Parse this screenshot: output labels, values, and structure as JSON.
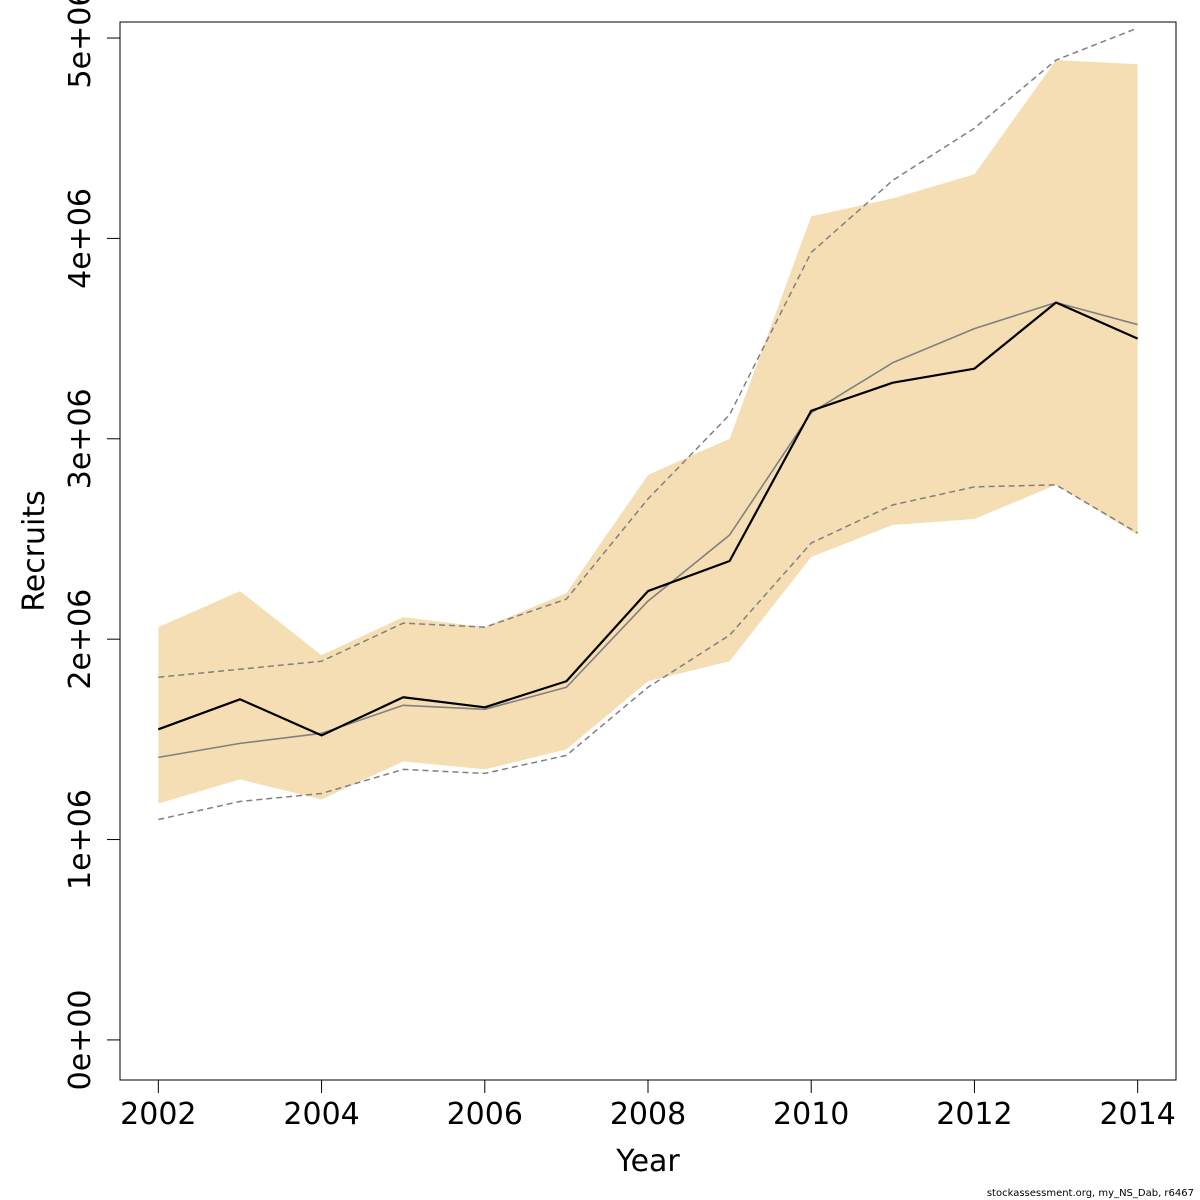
{
  "chart_data": {
    "type": "line",
    "xlabel": "Year",
    "ylabel": "Recruits",
    "xlim": [
      2001.53,
      2014.47
    ],
    "ylim": [
      -200000,
      5080000
    ],
    "x_ticks": [
      2002,
      2004,
      2006,
      2008,
      2010,
      2012,
      2014
    ],
    "x_tick_labels": [
      "2002",
      "2004",
      "2006",
      "2008",
      "2010",
      "2012",
      "2014"
    ],
    "y_ticks": [
      0,
      1000000,
      2000000,
      3000000,
      4000000,
      5000000
    ],
    "y_tick_labels": [
      "0e+00",
      "1e+06",
      "2e+06",
      "3e+06",
      "4e+06",
      "5e+06"
    ],
    "grid": false,
    "x": [
      2002,
      2003,
      2004,
      2005,
      2006,
      2007,
      2008,
      2009,
      2010,
      2011,
      2012,
      2013,
      2014
    ],
    "band": {
      "lower": [
        1180000,
        1300000,
        1200000,
        1390000,
        1350000,
        1450000,
        1790000,
        1890000,
        2410000,
        2570000,
        2600000,
        2770000,
        2520000
      ],
      "upper": [
        2060000,
        2240000,
        1920000,
        2110000,
        2060000,
        2230000,
        2820000,
        3000000,
        4110000,
        4200000,
        4320000,
        4890000,
        4870000
      ]
    },
    "series": [
      {
        "values": [
          1550000,
          1700000,
          1520000,
          1710000,
          1660000,
          1790000,
          2240000,
          2390000,
          3140000,
          3280000,
          3350000,
          3680000,
          3500000
        ]
      },
      {
        "values": [
          1410000,
          1480000,
          1530000,
          1670000,
          1650000,
          1760000,
          2190000,
          2520000,
          3130000,
          3380000,
          3550000,
          3680000,
          3570000
        ]
      },
      {
        "values": [
          1810000,
          1850000,
          1890000,
          2080000,
          2060000,
          2200000,
          2700000,
          3120000,
          3930000,
          4290000,
          4550000,
          4890000,
          5050000
        ]
      },
      {
        "values": [
          1100000,
          1190000,
          1230000,
          1350000,
          1330000,
          1420000,
          1760000,
          2020000,
          2480000,
          2670000,
          2760000,
          2770000,
          2530000
        ]
      }
    ],
    "colors": {
      "band": "#F5DEB3",
      "estimate": "#000000",
      "previous": "#808080",
      "previous_ci": "#808080"
    }
  },
  "footer": "stockassessment.org, my_NS_Dab, r6467"
}
